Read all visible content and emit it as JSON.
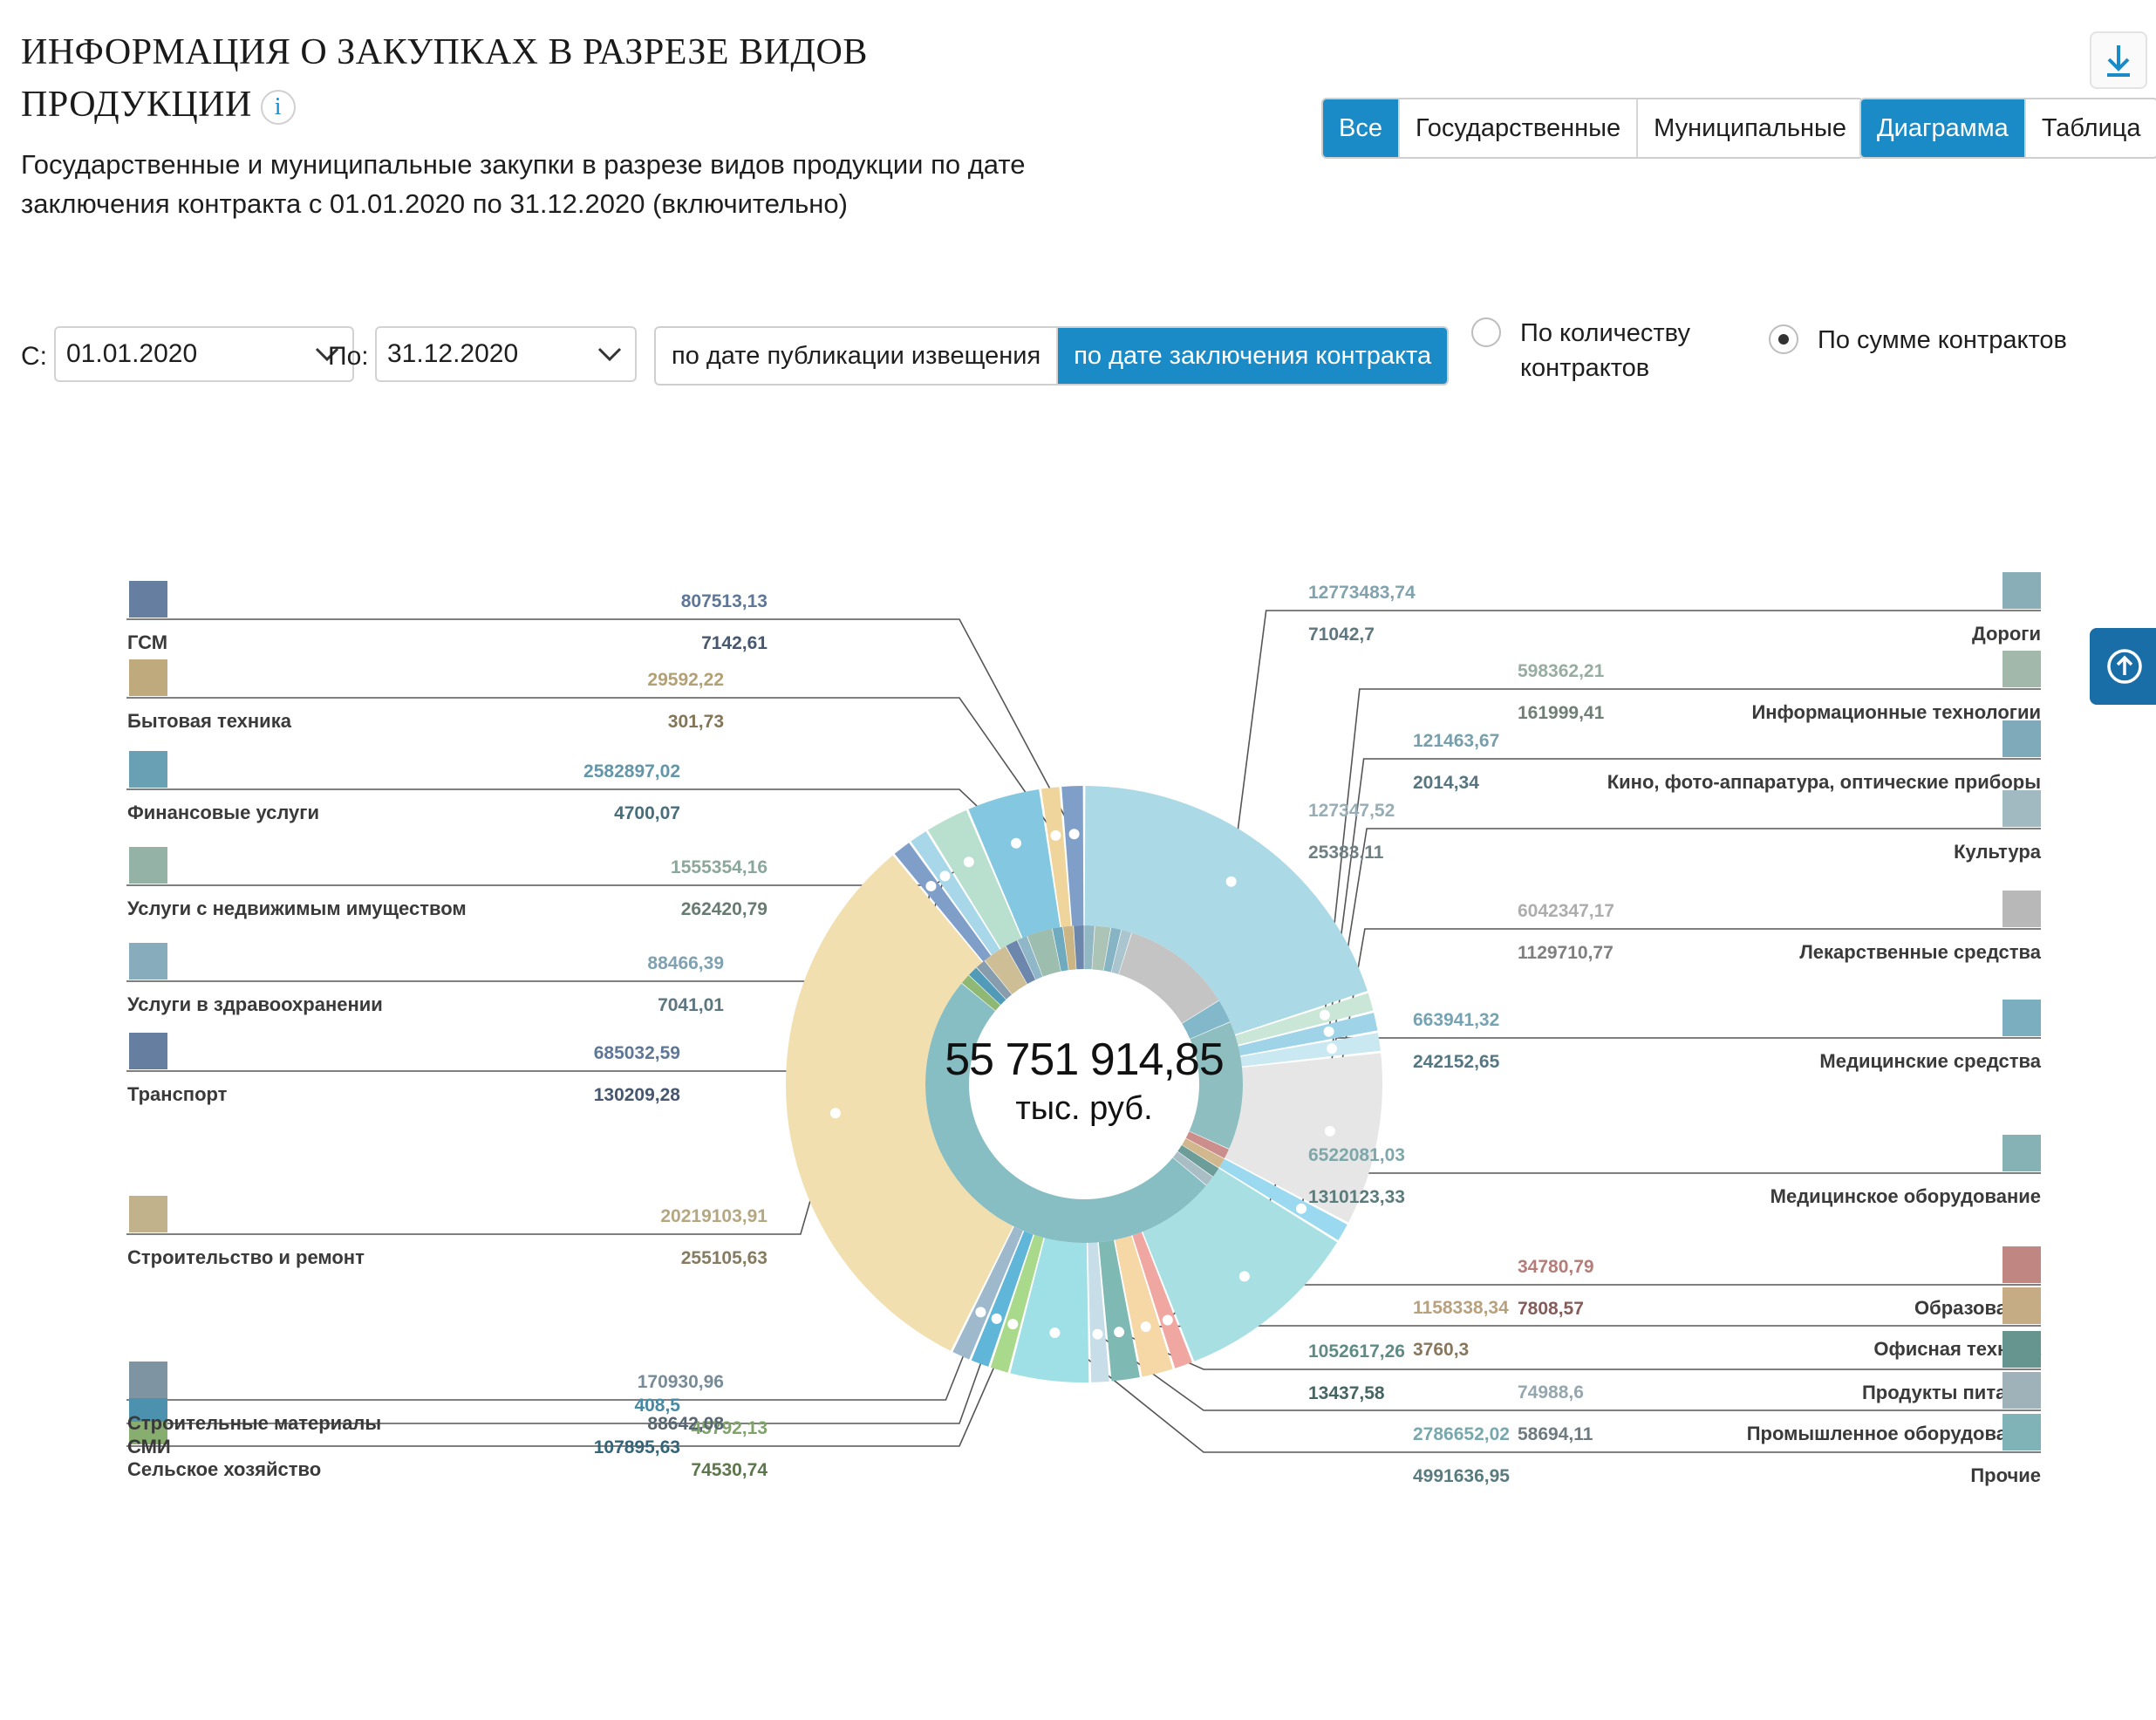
{
  "header": {
    "title": "ИНФОРМАЦИЯ О ЗАКУПКАХ В РАЗРЕЗЕ ВИДОВ ПРОДУКЦИИ",
    "info_icon": "i",
    "subtitle": "Государственные и муниципальные закупки в разрезе видов продукции по дате заключения контракта с 01.01.2020 по 31.12.2020 (включительно)"
  },
  "toolbar": {
    "scope_options": [
      "Все",
      "Государственные",
      "Муниципальные"
    ],
    "scope_selected": "Все",
    "view_options": [
      "Диаграмма",
      "Таблица"
    ],
    "view_selected": "Диаграмма",
    "download_icon": "download-icon"
  },
  "filters": {
    "from_label": "С:",
    "from_value": "01.01.2020",
    "to_label": "По:",
    "to_value": "31.12.2020",
    "date_mode_options": [
      "по дате публикации извещения",
      "по дате заключения контракта"
    ],
    "date_mode_selected": "по дате заключения контракта",
    "metric_count_label": "По количеству контрактов",
    "metric_sum_label": "По сумме контрактов",
    "metric_selected": "По сумме контрактов"
  },
  "colors": {
    "accent": "#1a8bc6",
    "side_tab": "#1a6ea8"
  },
  "chart_data": {
    "type": "pie",
    "total_label": "55 751 914,85",
    "unit_label": "тыс. руб.",
    "series": [
      {
        "category": "ГСМ",
        "value1": "807513,13",
        "value2": "7142,61",
        "color": "#7f9fc9",
        "icon": "fuel-icon"
      },
      {
        "category": "Бытовая техника",
        "value1": "29592,22",
        "value2": "301,73",
        "color": "#efd59c",
        "icon": "washing-machine-icon"
      },
      {
        "category": "Финансовые услуги",
        "value1": "2582897,02",
        "value2": "4700,07",
        "color": "#83c8e0",
        "icon": "calculator-icon"
      },
      {
        "category": "Услуги с недвижимым имуществом",
        "value1": "1555354,16",
        "value2": "262420,79",
        "color": "#b9dfce",
        "icon": "house-icon"
      },
      {
        "category": "Услуги в здравоохранении",
        "value1": "88466,39",
        "value2": "7041,01",
        "color": "#a9d7ea",
        "icon": "heart-pulse-icon"
      },
      {
        "category": "Транспорт",
        "value1": "685032,59",
        "value2": "130209,28",
        "color": "#7f9fc9",
        "icon": "bus-icon"
      },
      {
        "category": "Строительство и ремонт",
        "value1": "20219103,91",
        "value2": "255105,63",
        "color": "#f2dfaf",
        "icon": "helmet-icon"
      },
      {
        "category": "Строительные материалы",
        "value1": "170930,96",
        "value2": "88642,08",
        "color": "#9fb9cc",
        "icon": "bricks-icon"
      },
      {
        "category": "СМИ",
        "value1": "408,5",
        "value2": "107895,63",
        "color": "#5fb6d9",
        "icon": "tv-icon"
      },
      {
        "category": "Сельское хозяйство",
        "value1": "45792,13",
        "value2": "74530,74",
        "color": "#a9d98a",
        "icon": "plant-icon"
      },
      {
        "category": "Прочие",
        "value1": "2786652,02",
        "value2": "4991636,95",
        "color": "#9fe0e6",
        "icon": "document-icon"
      },
      {
        "category": "Промышленное оборудование",
        "value1": "74988,6",
        "value2": "58694,11",
        "color": "#c7dee8",
        "icon": "machine-icon"
      },
      {
        "category": "Продукты питания",
        "value1": "1052617,26",
        "value2": "13437,58",
        "color": "#7fb9b3",
        "icon": "carrot-icon"
      },
      {
        "category": "Офисная техника",
        "value1": "1158338,34",
        "value2": "3760,3",
        "color": "#f6d7a6",
        "icon": "printer-icon"
      },
      {
        "category": "Образование",
        "value1": "34780,79",
        "value2": "7808,57",
        "color": "#f0a7a2",
        "icon": "globe-icon"
      },
      {
        "category": "Медицинское оборудование",
        "value1": "6522081,03",
        "value2": "1310123,33",
        "color": "#a8dfe2",
        "icon": "medkit-icon"
      },
      {
        "category": "Медицинские средства",
        "value1": "663941,32",
        "value2": "242152,65",
        "color": "#9ad9ef",
        "icon": "pill-icon"
      },
      {
        "category": "Лекарственные средства",
        "value1": "6042347,17",
        "value2": "1129710,77",
        "color": "#e6e6e6",
        "icon": "medicine-bottle-icon"
      },
      {
        "category": "Культура",
        "value1": "127347,52",
        "value2": "25383,11",
        "color": "#c9e8f2",
        "icon": "museum-icon"
      },
      {
        "category": "Кино, фото-аппаратура, оптические приборы",
        "value1": "121463,67",
        "value2": "2014,34",
        "color": "#9fd4e8",
        "icon": "film-icon"
      },
      {
        "category": "Информационные технологии",
        "value1": "598362,21",
        "value2": "161999,41",
        "color": "#c9e6d6",
        "icon": "mouse-icon"
      },
      {
        "category": "Дороги",
        "value1": "12773483,74",
        "value2": "71042,7",
        "color": "#acd9e6",
        "icon": "road-icon"
      }
    ]
  }
}
